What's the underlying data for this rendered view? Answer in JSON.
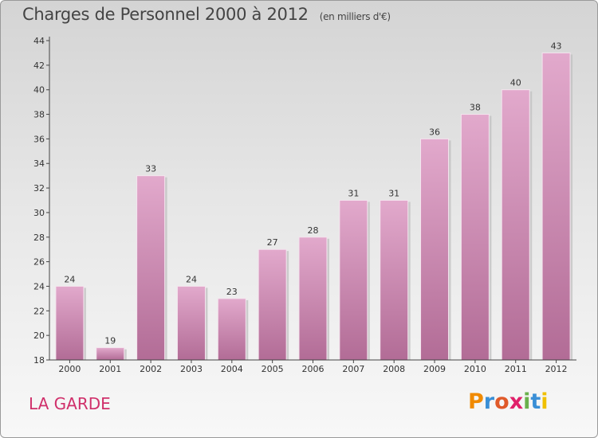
{
  "chart_data": {
    "type": "bar",
    "title": "Charges de Personnel 2000 à 2012",
    "subtitle": "(en milliers d'€)",
    "xlabel": "",
    "ylabel": "",
    "categories": [
      "2000",
      "2001",
      "2002",
      "2003",
      "2004",
      "2005",
      "2006",
      "2007",
      "2008",
      "2009",
      "2010",
      "2011",
      "2012"
    ],
    "values": [
      24,
      19,
      33,
      24,
      23,
      27,
      28,
      31,
      31,
      36,
      38,
      40,
      43
    ],
    "ylim": [
      18,
      44
    ],
    "yticks": [
      18,
      20,
      22,
      24,
      26,
      28,
      30,
      32,
      34,
      36,
      38,
      40,
      42,
      44
    ],
    "grid": false,
    "bar_color": "#d77fae",
    "legend": "none"
  },
  "commune": "LA GARDE",
  "logo": {
    "letters": [
      "P",
      "r",
      "o",
      "x",
      "i",
      "t",
      "i"
    ],
    "colors": [
      "#f08a00",
      "#3a8fd6",
      "#e05a2a",
      "#e0206a",
      "#6ab04c",
      "#3a8fd6",
      "#f0c000"
    ]
  }
}
